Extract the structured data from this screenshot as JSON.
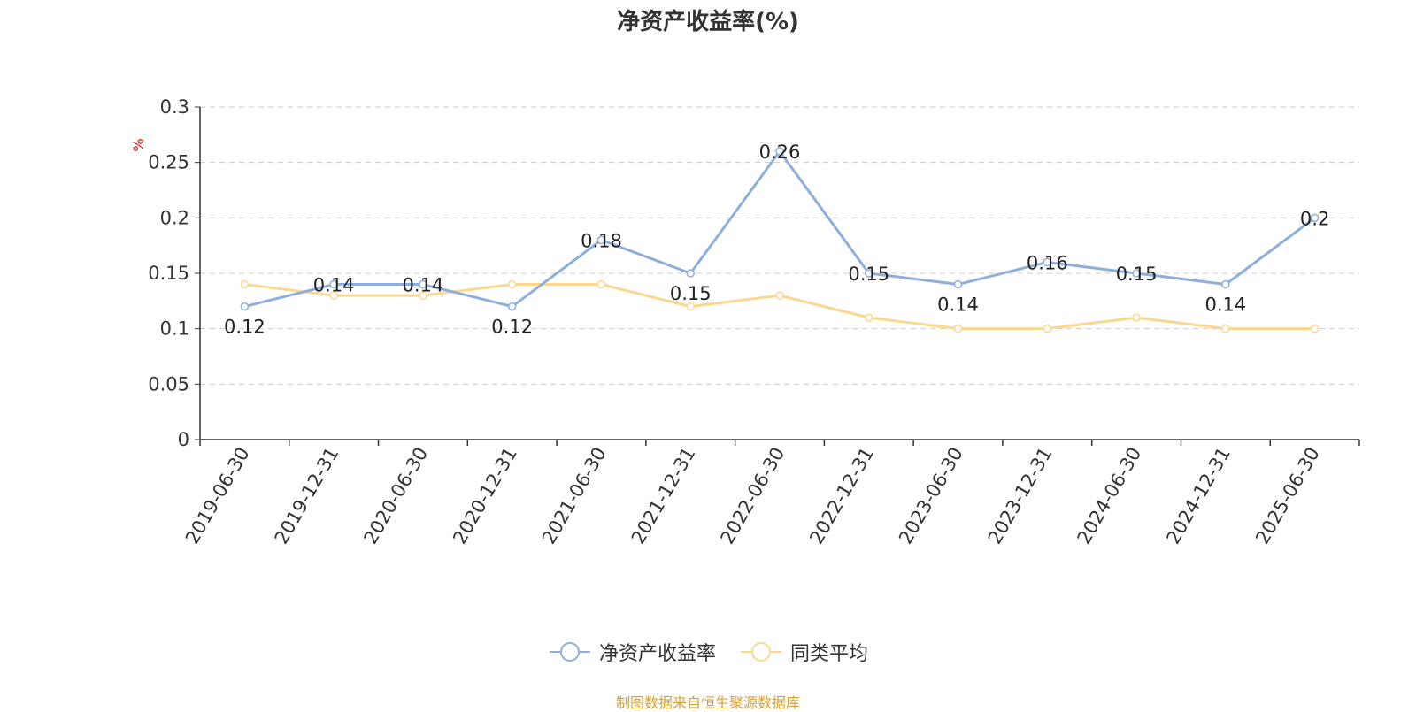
{
  "chart_data": {
    "type": "line",
    "title": "净资产收益率(%)",
    "ylabel": "%",
    "xlabel": "",
    "ylim": [
      0,
      0.3
    ],
    "yticks": [
      0,
      0.05,
      0.1,
      0.15,
      0.2,
      0.25,
      0.3
    ],
    "ytick_labels": [
      "0",
      "0.05",
      "0.1",
      "0.15",
      "0.2",
      "0.25",
      "0.3"
    ],
    "grid": true,
    "legend_position": "bottom-center",
    "categories": [
      "2019-06-30",
      "2019-12-31",
      "2020-06-30",
      "2020-12-31",
      "2021-06-30",
      "2021-12-31",
      "2022-06-30",
      "2022-12-31",
      "2023-06-30",
      "2023-12-31",
      "2024-06-30",
      "2024-12-31",
      "2025-06-30"
    ],
    "series": [
      {
        "name": "净资产收益率",
        "color": "#8eaedb",
        "values": [
          0.12,
          0.14,
          0.14,
          0.12,
          0.18,
          0.15,
          0.26,
          0.15,
          0.14,
          0.16,
          0.15,
          0.14,
          0.2
        ],
        "data_labels": [
          "0.12",
          "0.14",
          "0.14",
          "0.12",
          "0.18",
          "0.15",
          "0.26",
          "0.15",
          "0.14",
          "0.16",
          "0.15",
          "0.14",
          "0.2"
        ]
      },
      {
        "name": "同类平均",
        "color": "#fbd88f",
        "values": [
          0.14,
          0.13,
          0.13,
          0.14,
          0.14,
          0.12,
          0.13,
          0.11,
          0.1,
          0.1,
          0.11,
          0.1,
          0.1
        ]
      }
    ]
  },
  "source_note": "制图数据来自恒生聚源数据库"
}
